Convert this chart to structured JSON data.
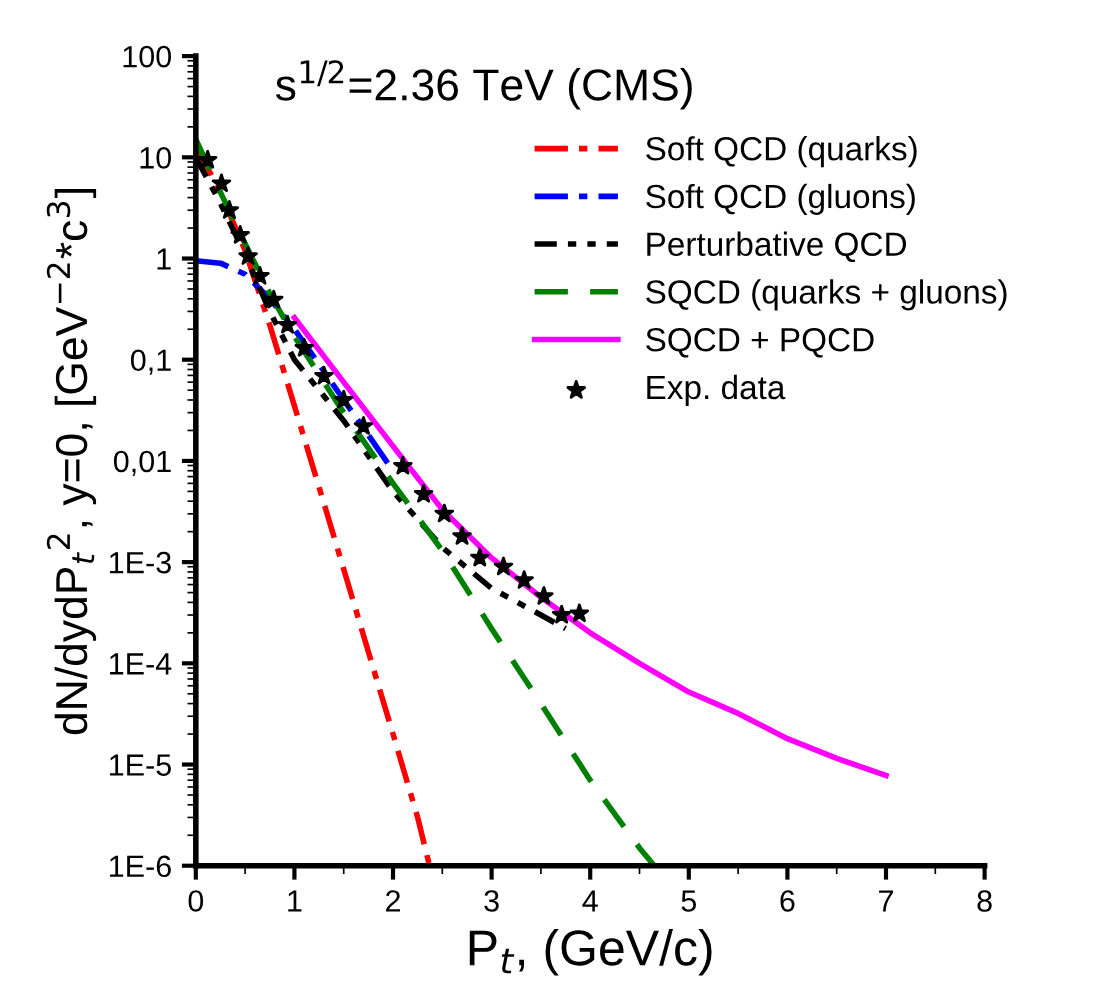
{
  "chart_data": {
    "type": "line",
    "title": "s$^{1/2}$=2.36 TeV (CMS)",
    "xlabel": "P$_{t}$, (GeV/c)",
    "ylabel": "dN/dydP$_{t}$$^{2}$, y=0, [GeV$^{−2}$*c$^{3}$]",
    "log": "y",
    "xlim": [
      0,
      8
    ],
    "xticks": [
      0,
      1,
      2,
      3,
      4,
      5,
      6,
      7,
      8
    ],
    "ylim": [
      1e-06,
      100
    ],
    "yticks": [
      {
        "value": 1e-06,
        "label": "1E-6"
      },
      {
        "value": 1e-05,
        "label": "1E-5"
      },
      {
        "value": 0.0001,
        "label": "1E-4"
      },
      {
        "value": 0.001,
        "label": "1E-3"
      },
      {
        "value": 0.01,
        "label": "0,01"
      },
      {
        "value": 0.1,
        "label": "0,1"
      },
      1,
      10,
      100
    ],
    "grid": false,
    "legend": "top right",
    "series": [
      {
        "name": "Soft QCD (quarks)",
        "color": "#ff0000",
        "line_style": "dashdot",
        "x": [
          0,
          0.25,
          0.5,
          0.75,
          1,
          1.25,
          1.5,
          1.75,
          2,
          2.25,
          2.37
        ],
        "values": [
          13,
          4.5,
          1.2,
          0.22,
          0.035,
          0.0055,
          0.00085,
          0.00013,
          2e-05,
          3e-06,
          1e-06
        ]
      },
      {
        "name": "Soft QCD (gluons)",
        "color": "#0000ff",
        "line_style": "dashdot",
        "x": [
          0,
          0.25,
          0.5,
          0.75,
          1,
          1.25,
          1.5,
          1.75,
          2
        ],
        "values": [
          0.95,
          0.9,
          0.7,
          0.4,
          0.2,
          0.09,
          0.04,
          0.018,
          0.008
        ]
      },
      {
        "name": "Perturbative QCD",
        "color": "#000000",
        "line_style": "dotted",
        "x": [
          0,
          0.25,
          0.5,
          0.75,
          1,
          1.5,
          2,
          2.5,
          3,
          3.5,
          3.75
        ],
        "values": [
          10,
          3.5,
          1.1,
          0.3,
          0.1,
          0.025,
          0.005,
          0.0014,
          0.00055,
          0.0003,
          0.00022
        ]
      },
      {
        "name": "SQCD (quarks + gluons)",
        "color": "#008000",
        "line_style": "dashed",
        "x": [
          0,
          0.25,
          0.5,
          0.75,
          1,
          1.5,
          2,
          2.5,
          3,
          3.5,
          4,
          4.5,
          4.65
        ],
        "values": [
          15,
          4.5,
          1.4,
          0.45,
          0.17,
          0.03,
          0.006,
          0.0013,
          0.00022,
          4e-05,
          7e-06,
          1.5e-06,
          1e-06
        ]
      },
      {
        "name": "SQCD + PQCD",
        "color": "#ff00ff",
        "line_style": "solid",
        "x": [
          1,
          1.5,
          2,
          2.5,
          3,
          3.5,
          4,
          4.5,
          5,
          5.5,
          6,
          6.5,
          7
        ],
        "values": [
          0.26,
          0.06,
          0.014,
          0.0033,
          0.0011,
          0.00045,
          0.0002,
          0.0001,
          5.2e-05,
          3.2e-05,
          1.8e-05,
          1.15e-05,
          7.8e-06
        ]
      },
      {
        "name": "Exp. data",
        "type": "scatter",
        "color": "#000000",
        "marker": "star",
        "x": [
          0.12,
          0.26,
          0.34,
          0.45,
          0.53,
          0.65,
          0.79,
          0.93,
          1.1,
          1.3,
          1.5,
          1.7,
          2.1,
          2.31,
          2.52,
          2.7,
          2.88,
          3.12,
          3.33,
          3.53,
          3.71,
          3.89
        ],
        "values": [
          9.4,
          5.5,
          3,
          1.7,
          1.05,
          0.67,
          0.39,
          0.22,
          0.13,
          0.069,
          0.04,
          0.022,
          0.0089,
          0.0047,
          0.003,
          0.0018,
          0.0011,
          0.0009,
          0.00066,
          0.00046,
          0.0003,
          0.00031
        ]
      }
    ]
  }
}
